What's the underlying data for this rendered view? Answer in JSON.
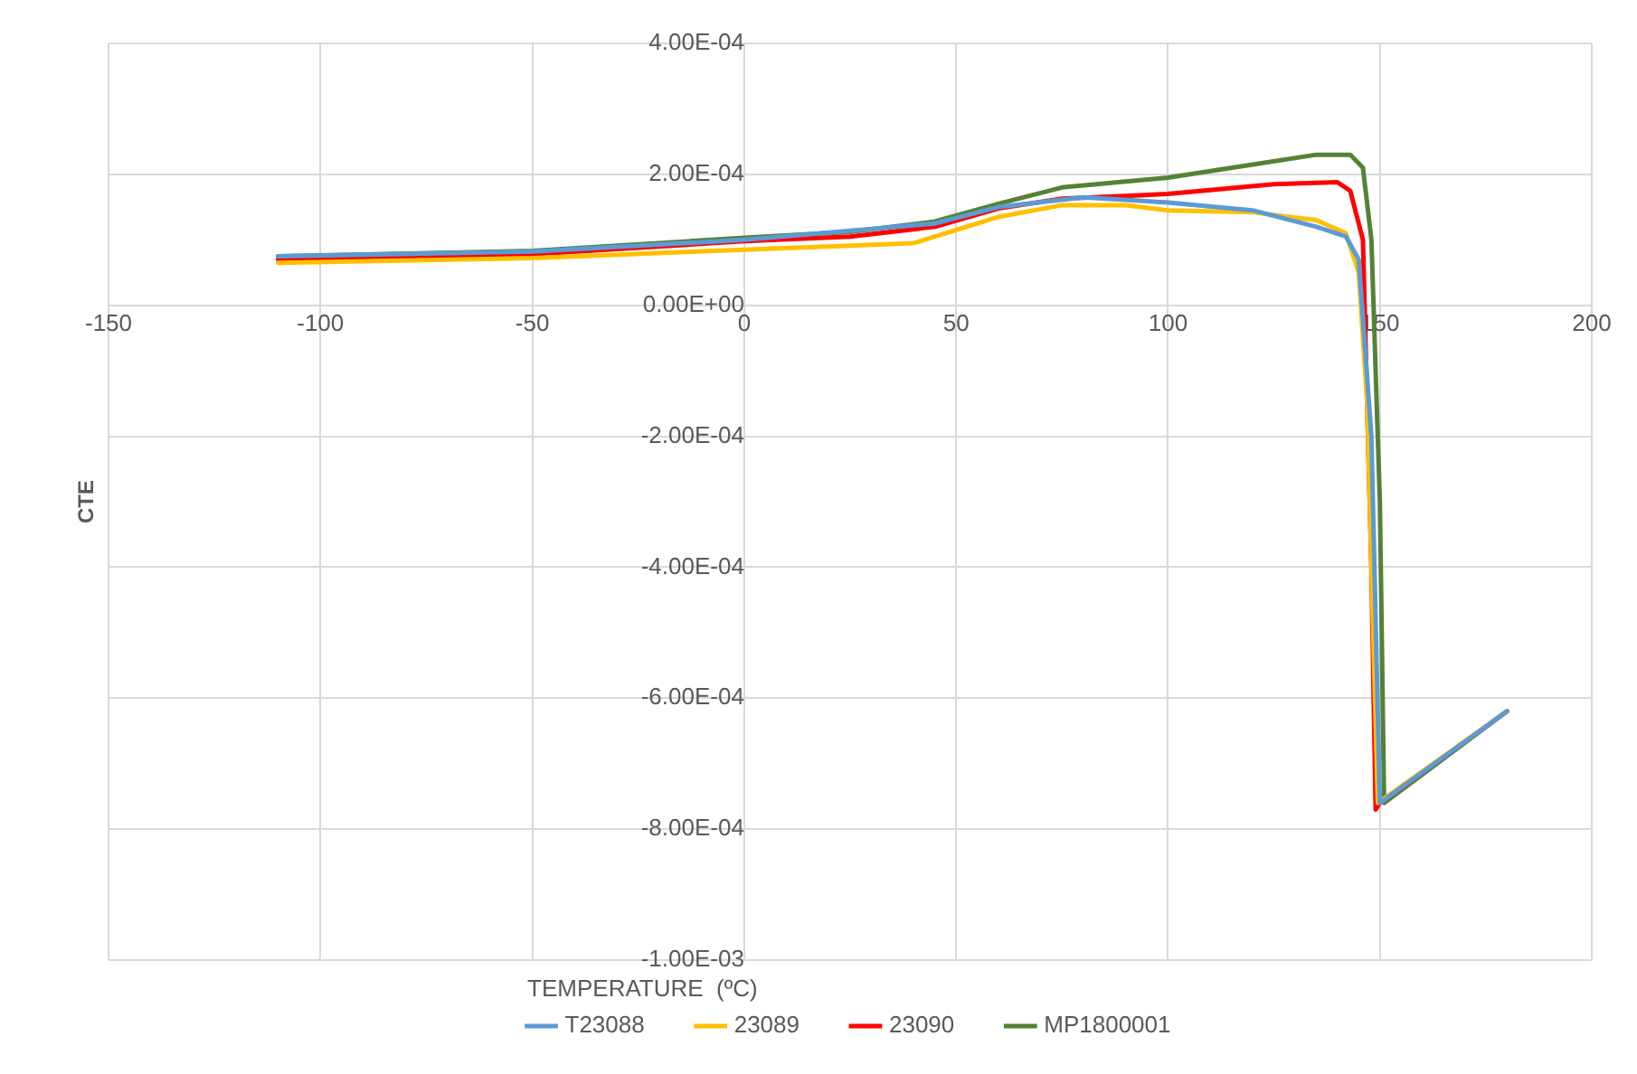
{
  "chart_data": {
    "type": "line",
    "xlabel": "TEMPERATURE  (ºC)",
    "ylabel": "CTE",
    "xlim": [
      -150,
      200
    ],
    "xticks": [
      -150,
      -100,
      -50,
      0,
      50,
      100,
      150,
      200
    ],
    "ylim": [
      -0.001,
      0.0004
    ],
    "yticks": [
      {
        "value": -0.001,
        "label": "-1.00E-03"
      },
      {
        "value": -0.0008,
        "label": "-8.00E-04"
      },
      {
        "value": -0.0006,
        "label": "-6.00E-04"
      },
      {
        "value": -0.0004,
        "label": "-4.00E-04"
      },
      {
        "value": -0.0002,
        "label": "-2.00E-04"
      },
      {
        "value": 0,
        "label": "0.00E+00"
      },
      {
        "value": 0.0002,
        "label": "2.00E-04"
      },
      {
        "value": 0.0004,
        "label": "4.00E-04"
      }
    ],
    "grid": true,
    "legend": "bottom",
    "marker": "none",
    "line_style": "solid",
    "series": [
      {
        "name": "T23088",
        "color": "#5b9bd5",
        "x": [
          -110,
          -50,
          0,
          45,
          60,
          80,
          100,
          120,
          135,
          142,
          145,
          148,
          150,
          180
        ],
        "values": [
          7.5e-05,
          8.2e-05,
          0.0001,
          0.000125,
          0.00015,
          0.000165,
          0.000157,
          0.000145,
          0.00012,
          0.000105,
          7e-05,
          -0.0002,
          -0.00076,
          -0.00062
        ]
      },
      {
        "name": "23089",
        "color": "#ffc000",
        "x": [
          -110,
          -50,
          0,
          40,
          60,
          75,
          90,
          100,
          120,
          135,
          142,
          145,
          147,
          149.5,
          180
        ],
        "values": [
          6.5e-05,
          7.2e-05,
          8.5e-05,
          9.5e-05,
          0.000135,
          0.000153,
          0.000153,
          0.000145,
          0.000142,
          0.00013,
          0.00011,
          5e-05,
          -0.00015,
          -0.00076,
          -0.00062
        ]
      },
      {
        "name": "23090",
        "color": "#ff0000",
        "x": [
          -110,
          -50,
          0,
          25,
          45,
          60,
          75,
          100,
          125,
          140,
          143,
          146,
          148,
          149,
          150,
          180
        ],
        "values": [
          7e-05,
          7.8e-05,
          9.8e-05,
          0.000105,
          0.00012,
          0.000148,
          0.000163,
          0.00017,
          0.000185,
          0.000188,
          0.000175,
          0.0001,
          -0.0004,
          -0.00077,
          -0.00076,
          -0.00062
        ]
      },
      {
        "name": "MP1800001",
        "color": "#548235",
        "x": [
          -110,
          -50,
          0,
          25,
          45,
          60,
          75,
          100,
          120,
          135,
          143,
          146,
          148,
          150,
          151,
          180
        ],
        "values": [
          7.5e-05,
          8.3e-05,
          0.000103,
          0.000112,
          0.000128,
          0.000155,
          0.00018,
          0.000195,
          0.000215,
          0.00023,
          0.00023,
          0.00021,
          0.0001,
          -0.0003,
          -0.00076,
          -0.00062
        ]
      }
    ]
  }
}
